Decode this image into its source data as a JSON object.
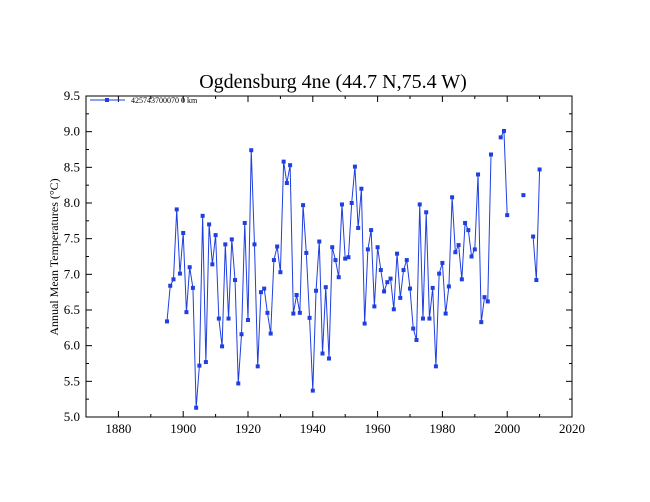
{
  "chart_data": {
    "type": "line",
    "title": "Ogdensburg 4ne (44.7 N,75.4 W)",
    "xlabel": "",
    "ylabel": "Annual Mean Temperatures (°C)",
    "xlim": [
      1870,
      2020
    ],
    "ylim": [
      5.0,
      9.5
    ],
    "x_ticks": [
      1880,
      1900,
      1920,
      1940,
      1960,
      1980,
      2000,
      2020
    ],
    "y_ticks": [
      5.0,
      5.5,
      6.0,
      6.5,
      7.0,
      7.5,
      8.0,
      8.5,
      9.0,
      9.5
    ],
    "x_tick_labels": [
      "1880",
      "1900",
      "1920",
      "1940",
      "1960",
      "1980",
      "2000",
      "2020"
    ],
    "y_tick_labels": [
      "5.0",
      "5.5",
      "6.0",
      "6.5",
      "7.0",
      "7.5",
      "8.0",
      "8.5",
      "9.0",
      "9.5"
    ],
    "grid": false,
    "legend_position": "top-left",
    "series": [
      {
        "name": "425743700070  0 km",
        "color": "#1f3fe0",
        "marker": "square",
        "points": [
          [
            1895,
            6.34
          ],
          [
            1896,
            6.84
          ],
          [
            1897,
            6.93
          ],
          [
            1898,
            7.91
          ],
          [
            1899,
            7.01
          ],
          [
            1900,
            7.58
          ],
          [
            1901,
            6.47
          ],
          [
            1902,
            7.1
          ],
          [
            1903,
            6.81
          ],
          [
            1904,
            5.13
          ],
          [
            1905,
            5.72
          ],
          [
            1906,
            7.82
          ],
          [
            1907,
            5.77
          ],
          [
            1908,
            7.7
          ],
          [
            1909,
            7.14
          ],
          [
            1910,
            7.55
          ],
          [
            1911,
            6.38
          ],
          [
            1912,
            5.99
          ],
          [
            1913,
            7.42
          ],
          [
            1914,
            6.38
          ],
          [
            1915,
            7.49
          ],
          [
            1916,
            6.92
          ],
          [
            1917,
            5.47
          ],
          [
            1918,
            6.16
          ],
          [
            1919,
            7.72
          ],
          [
            1920,
            6.36
          ],
          [
            1921,
            8.74
          ],
          [
            1922,
            7.42
          ],
          [
            1923,
            5.71
          ],
          [
            1924,
            6.75
          ],
          [
            1925,
            6.8
          ],
          [
            1926,
            6.46
          ],
          [
            1927,
            6.17
          ],
          [
            1928,
            7.2
          ],
          [
            1929,
            7.39
          ],
          [
            1930,
            7.03
          ],
          [
            1931,
            8.58
          ],
          [
            1932,
            8.28
          ],
          [
            1933,
            8.53
          ],
          [
            1934,
            6.45
          ],
          [
            1935,
            6.71
          ],
          [
            1936,
            6.46
          ],
          [
            1937,
            7.97
          ],
          [
            1938,
            7.3
          ],
          [
            1939,
            6.39
          ],
          [
            1940,
            5.37
          ],
          [
            1941,
            6.77
          ],
          [
            1942,
            7.46
          ],
          [
            1943,
            5.89
          ],
          [
            1944,
            6.82
          ],
          [
            1945,
            5.82
          ],
          [
            1946,
            7.38
          ],
          [
            1947,
            7.2
          ],
          [
            1948,
            6.96
          ],
          [
            1949,
            7.98
          ],
          [
            1950,
            7.22
          ],
          [
            1951,
            7.24
          ],
          [
            1952,
            8.0
          ],
          [
            1953,
            8.51
          ],
          [
            1954,
            7.65
          ],
          [
            1955,
            8.2
          ],
          [
            1956,
            6.31
          ],
          [
            1957,
            7.35
          ],
          [
            1958,
            7.62
          ],
          [
            1959,
            6.55
          ],
          [
            1960,
            7.38
          ],
          [
            1961,
            7.06
          ],
          [
            1962,
            6.76
          ],
          [
            1963,
            6.89
          ],
          [
            1964,
            6.94
          ],
          [
            1965,
            6.51
          ],
          [
            1966,
            7.29
          ],
          [
            1967,
            6.67
          ],
          [
            1968,
            7.06
          ],
          [
            1969,
            7.2
          ],
          [
            1970,
            6.8
          ],
          [
            1971,
            6.24
          ],
          [
            1972,
            6.08
          ],
          [
            1973,
            7.98
          ],
          [
            1974,
            6.38
          ],
          [
            1975,
            7.87
          ],
          [
            1976,
            6.38
          ],
          [
            1977,
            6.81
          ],
          [
            1978,
            5.71
          ],
          [
            1979,
            7.01
          ],
          [
            1980,
            7.16
          ],
          [
            1981,
            6.45
          ],
          [
            1982,
            6.83
          ],
          [
            1983,
            8.08
          ],
          [
            1984,
            7.31
          ],
          [
            1985,
            7.41
          ],
          [
            1986,
            6.93
          ],
          [
            1987,
            7.72
          ],
          [
            1988,
            7.62
          ],
          [
            1989,
            7.25
          ],
          [
            1990,
            7.35
          ],
          [
            1991,
            8.4
          ],
          [
            1992,
            6.33
          ],
          [
            1993,
            6.68
          ],
          [
            1994,
            6.62
          ],
          [
            1995,
            8.68
          ],
          [
            1998,
            8.92
          ],
          [
            1999,
            9.01
          ],
          [
            2000,
            7.83
          ],
          [
            2005,
            8.11
          ],
          [
            2008,
            7.53
          ],
          [
            2009,
            6.92
          ],
          [
            2010,
            8.47
          ]
        ]
      }
    ]
  }
}
